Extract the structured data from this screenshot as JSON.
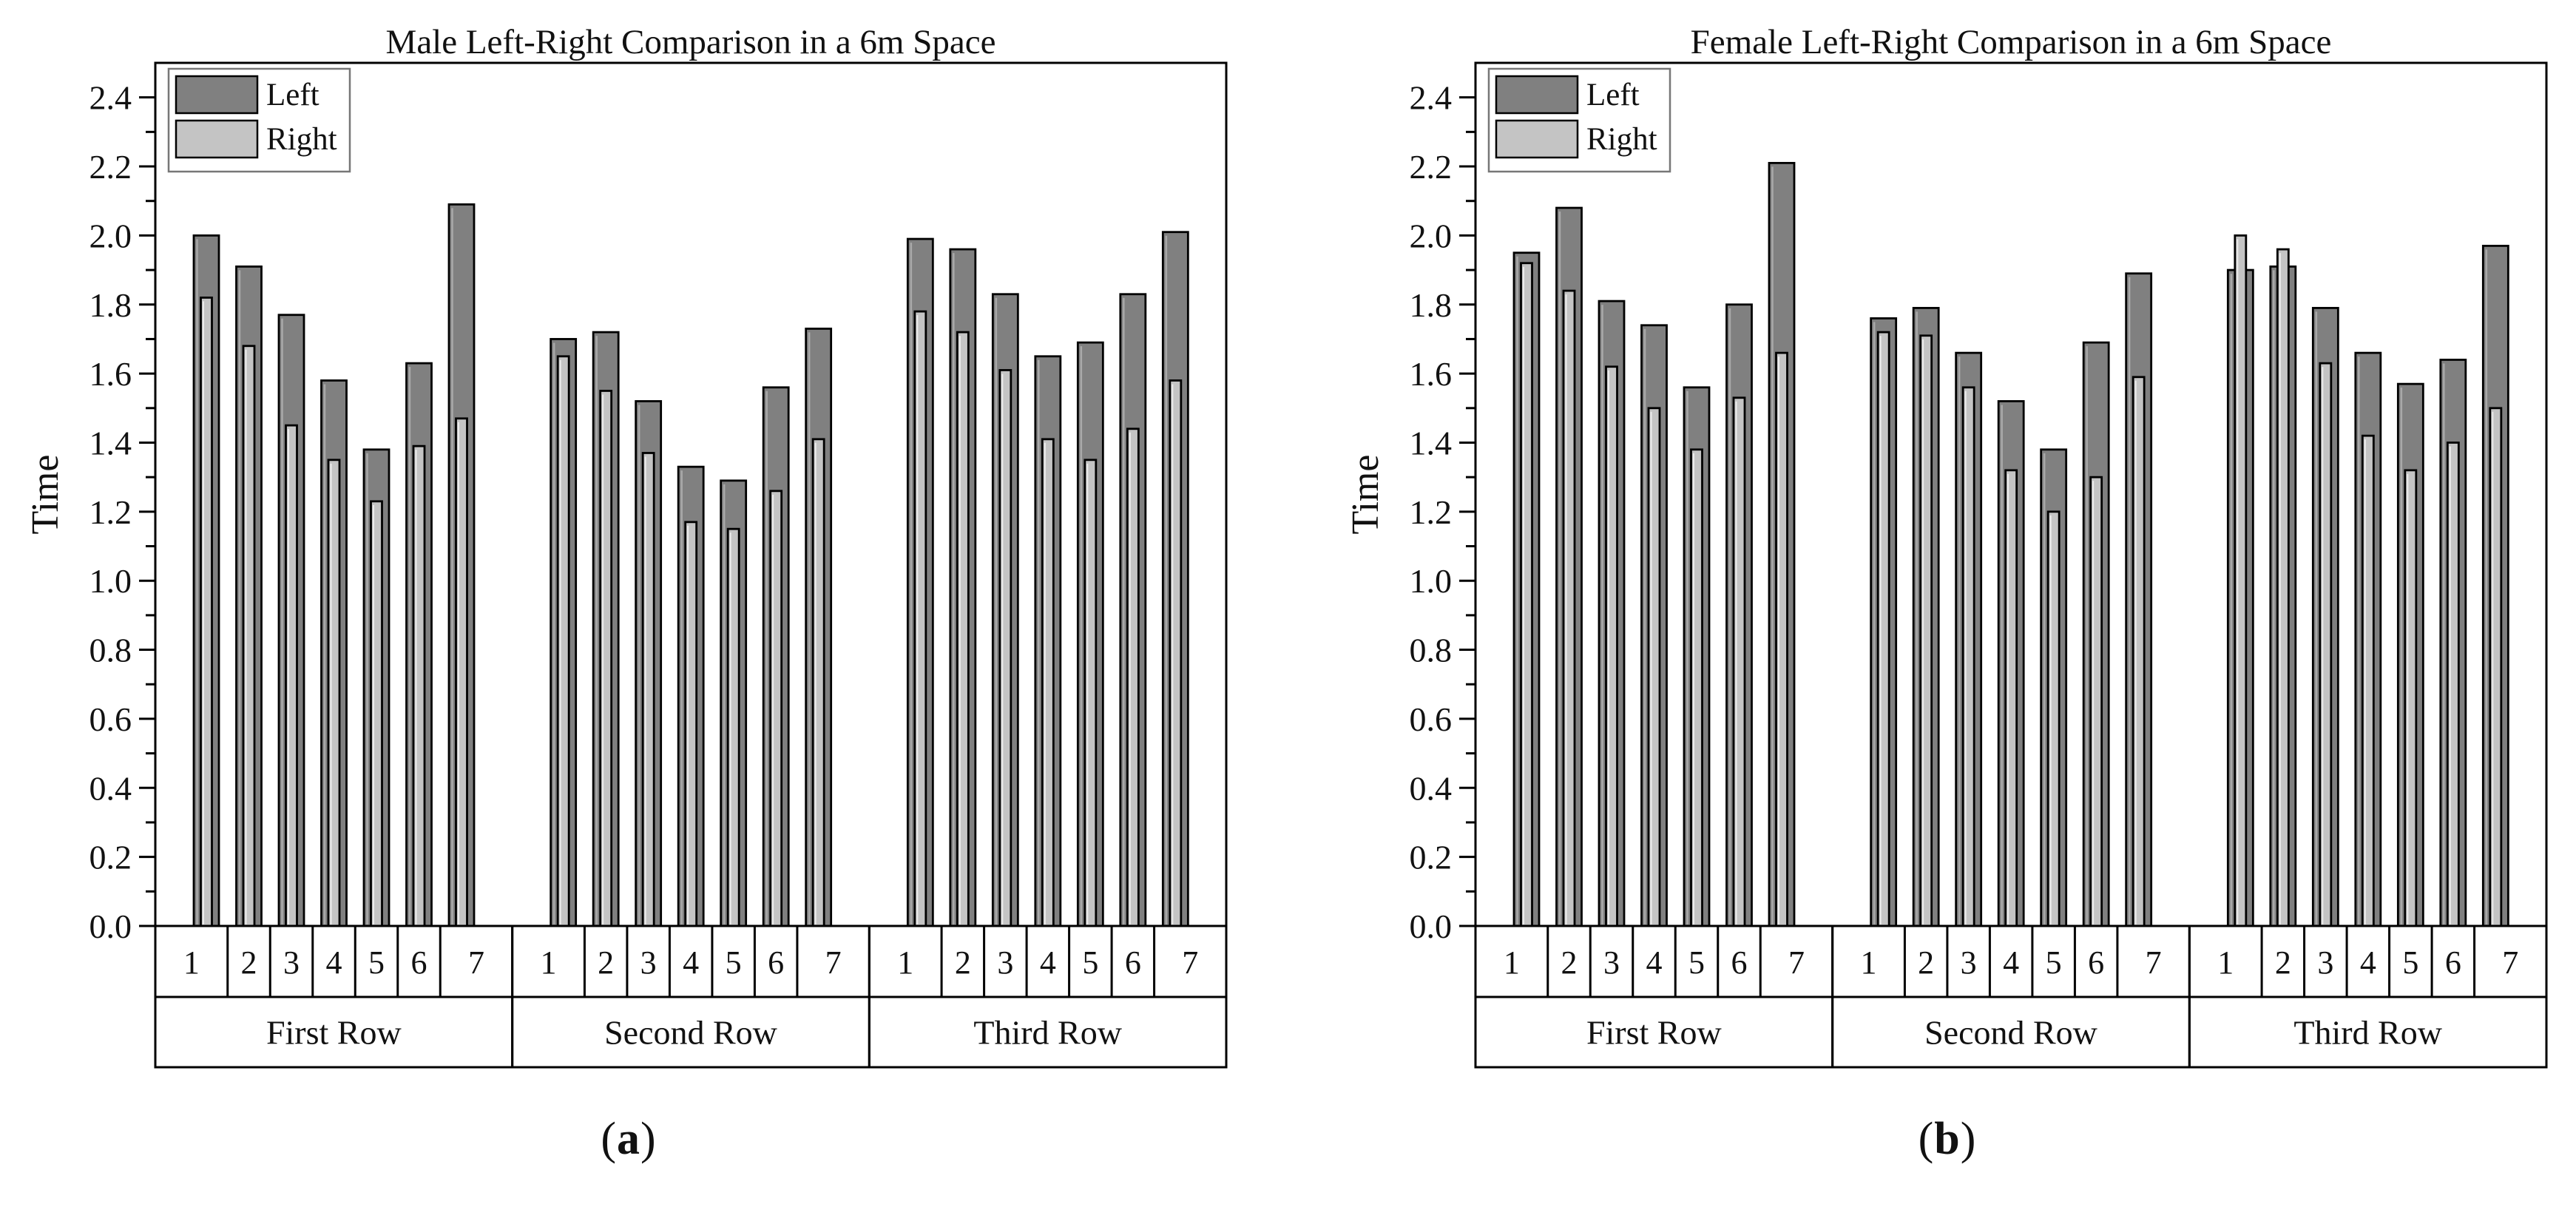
{
  "figure": {
    "captions": [
      {
        "open": "(",
        "letter": "a",
        "close": ")"
      },
      {
        "open": "(",
        "letter": "b",
        "close": ")"
      }
    ]
  },
  "chart_data": [
    {
      "type": "bar",
      "title": "Male Left-Right Comparison in a 6m Space",
      "xlabel": "",
      "ylabel": "Time",
      "ylim": [
        0,
        2.5
      ],
      "ytick_labels": [
        "0.0",
        "0.2",
        "0.4",
        "0.6",
        "0.8",
        "1.0",
        "1.2",
        "1.4",
        "1.6",
        "1.8",
        "2.0",
        "2.2",
        "2.4"
      ],
      "ytick_minor_step": 0.1,
      "grid": false,
      "legend_position": "top-left",
      "groups": [
        "First Row",
        "Second Row",
        "Third Row"
      ],
      "categories": [
        "1",
        "2",
        "3",
        "4",
        "5",
        "6",
        "7"
      ],
      "bar_style": "overlaid",
      "series": [
        {
          "name": "Left",
          "color": "#808080",
          "values": [
            [
              2.0,
              1.91,
              1.77,
              1.58,
              1.38,
              1.63,
              2.09
            ],
            [
              1.7,
              1.72,
              1.52,
              1.33,
              1.29,
              1.56,
              1.73
            ],
            [
              1.99,
              1.96,
              1.83,
              1.65,
              1.69,
              1.83,
              2.01
            ]
          ]
        },
        {
          "name": "Right",
          "color": "#c4c4c4",
          "values": [
            [
              1.82,
              1.68,
              1.45,
              1.35,
              1.23,
              1.39,
              1.47
            ],
            [
              1.65,
              1.55,
              1.37,
              1.17,
              1.15,
              1.26,
              1.41
            ],
            [
              1.78,
              1.72,
              1.61,
              1.41,
              1.35,
              1.44,
              1.58
            ]
          ]
        }
      ],
      "outline_color": "#000000"
    },
    {
      "type": "bar",
      "title": "Female Left-Right Comparison in a 6m Space",
      "xlabel": "",
      "ylabel": "Time",
      "ylim": [
        0,
        2.5
      ],
      "ytick_labels": [
        "0.0",
        "0.2",
        "0.4",
        "0.6",
        "0.8",
        "1.0",
        "1.2",
        "1.4",
        "1.6",
        "1.8",
        "2.0",
        "2.2",
        "2.4"
      ],
      "ytick_minor_step": 0.1,
      "grid": false,
      "legend_position": "top-left",
      "groups": [
        "First Row",
        "Second Row",
        "Third Row"
      ],
      "categories": [
        "1",
        "2",
        "3",
        "4",
        "5",
        "6",
        "7"
      ],
      "bar_style": "overlaid",
      "series": [
        {
          "name": "Left",
          "color": "#808080",
          "values": [
            [
              1.95,
              2.08,
              1.81,
              1.74,
              1.56,
              1.8,
              2.21
            ],
            [
              1.76,
              1.79,
              1.66,
              1.52,
              1.38,
              1.69,
              1.89
            ],
            [
              1.9,
              1.91,
              1.79,
              1.66,
              1.57,
              1.64,
              1.97
            ]
          ]
        },
        {
          "name": "Right",
          "color": "#c4c4c4",
          "values": [
            [
              1.92,
              1.84,
              1.62,
              1.5,
              1.38,
              1.53,
              1.66
            ],
            [
              1.72,
              1.71,
              1.56,
              1.32,
              1.2,
              1.3,
              1.59
            ],
            [
              2.0,
              1.96,
              1.63,
              1.42,
              1.32,
              1.4,
              1.5
            ]
          ]
        }
      ],
      "outline_color": "#000000"
    }
  ]
}
